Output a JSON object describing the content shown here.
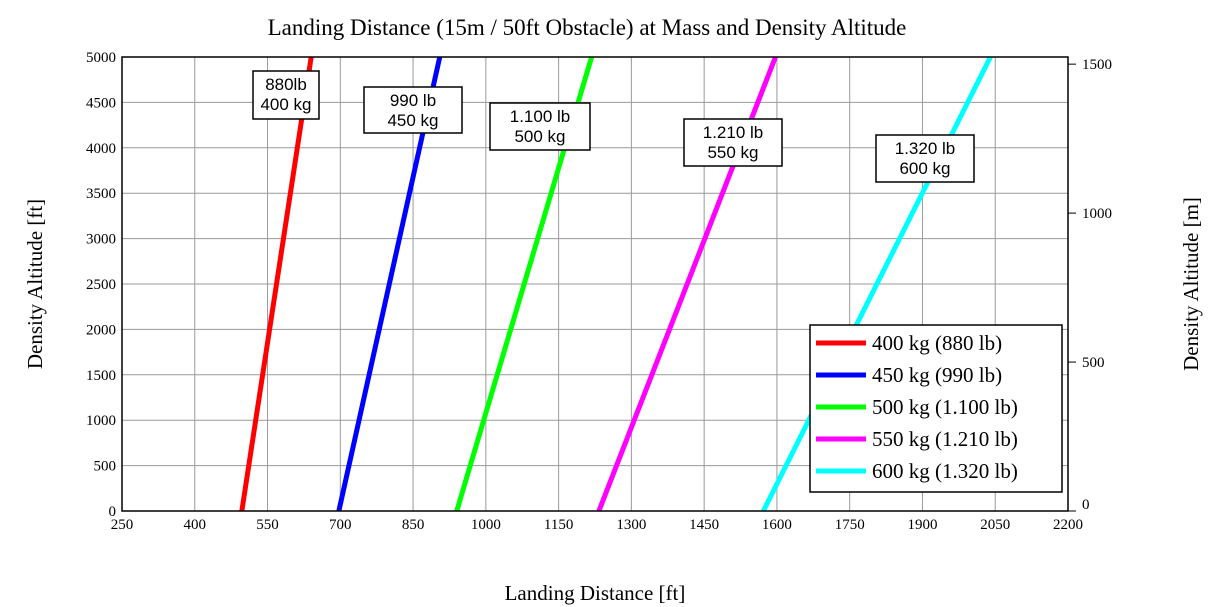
{
  "chart_data": {
    "type": "line",
    "title": "Landing Distance (15m / 50ft Obstacle) at Mass and Density Altitude",
    "xlabel": "Landing Distance [ft]",
    "ylabel": "Density Altitude [ft]",
    "y2label": "Density Altitude [m]",
    "xlim": [
      250,
      2200
    ],
    "ylim": [
      0,
      5000
    ],
    "y2lim": [
      0,
      1524
    ],
    "x_ticks": [
      250,
      400,
      550,
      700,
      850,
      1000,
      1150,
      1300,
      1450,
      1600,
      1750,
      1900,
      2050,
      2200
    ],
    "y_ticks": [
      0,
      500,
      1000,
      1500,
      2000,
      2500,
      3000,
      3500,
      4000,
      4500,
      5000
    ],
    "y2_ticks": [
      0,
      500,
      1000,
      1500
    ],
    "grid": true,
    "legend_position": "bottom-right",
    "series": [
      {
        "name": "400 kg (880 lb)",
        "color": "#ff0000",
        "x": [
          497,
          640
        ],
        "y": [
          0,
          5000
        ],
        "label_lines": [
          "880lb",
          "400 kg"
        ]
      },
      {
        "name": "450 kg (990 lb)",
        "color": "#0000ff",
        "x": [
          697,
          905
        ],
        "y": [
          0,
          5000
        ],
        "label_lines": [
          "990 lb",
          "450 kg"
        ]
      },
      {
        "name": "500 kg (1.100 lb)",
        "color": "#00ff00",
        "x": [
          940,
          1218
        ],
        "y": [
          0,
          5000
        ],
        "label_lines": [
          "1.100 lb",
          "500 kg"
        ]
      },
      {
        "name": "550 kg (1.210 lb)",
        "color": "#ff00ff",
        "x": [
          1233,
          1597
        ],
        "y": [
          0,
          5000
        ],
        "label_lines": [
          "1.210 lb",
          "550 kg"
        ]
      },
      {
        "name": "600 kg (1.320 lb)",
        "color": "#00ffff",
        "x": [
          1572,
          2040
        ],
        "y": [
          0,
          5000
        ],
        "label_lines": [
          "1.320 lb",
          "600 kg"
        ]
      }
    ]
  }
}
